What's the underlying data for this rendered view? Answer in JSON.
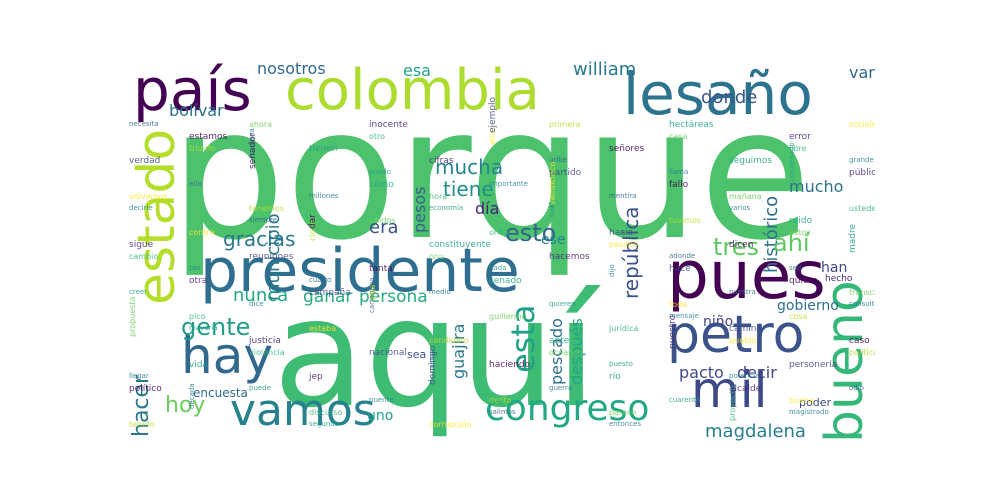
{
  "wordcloud": {
    "words": [
      {
        "text": "porque",
        "color": "#4cc26c"
      },
      {
        "text": "aquí",
        "color": "#3fbc73"
      },
      {
        "text": "presidente",
        "color": "#2e6e8e"
      },
      {
        "text": "colombia",
        "color": "#addc30"
      },
      {
        "text": "país",
        "color": "#440154"
      },
      {
        "text": "lesaño",
        "color": "#2c738e"
      },
      {
        "text": "pues",
        "color": "#440154"
      },
      {
        "text": "petro",
        "color": "#3b528b"
      },
      {
        "text": "bueno",
        "color": "#35b779"
      },
      {
        "text": "estado",
        "color": "#b5de2b"
      },
      {
        "text": "hay",
        "color": "#31688e"
      },
      {
        "text": "mil",
        "color": "#3e4989"
      },
      {
        "text": "vamos",
        "color": "#26828e"
      },
      {
        "text": "congreso",
        "color": "#22a884"
      },
      {
        "text": "gente",
        "color": "#1f9e89"
      },
      {
        "text": "hacer",
        "color": "#2a788e"
      },
      {
        "text": "hoy",
        "color": "#6ccd5a"
      },
      {
        "text": "gustavo",
        "color": "#31688e"
      },
      {
        "text": "tres",
        "color": "#5ec962"
      },
      {
        "text": "ahí",
        "color": "#5ec962"
      },
      {
        "text": "esto",
        "color": "#33638d"
      },
      {
        "text": "esta",
        "color": "#1fa187"
      },
      {
        "text": "república",
        "color": "#3b528b"
      },
      {
        "text": "gracias",
        "color": "#2a788e"
      },
      {
        "text": "mucha",
        "color": "#25858e"
      },
      {
        "text": "tiene",
        "color": "#218f8d"
      },
      {
        "text": "nunca",
        "color": "#22a884"
      },
      {
        "text": "ganar",
        "color": "#25ac82"
      },
      {
        "text": "persona",
        "color": "#25ac82"
      },
      {
        "text": "magdalena",
        "color": "#277f8e"
      },
      {
        "text": "pescado",
        "color": "#2d708e"
      },
      {
        "text": "pacto",
        "color": "#3e4a89"
      },
      {
        "text": "decir",
        "color": "#414487"
      },
      {
        "text": "donde",
        "color": "#39568c"
      },
      {
        "text": "esa",
        "color": "#20a486"
      },
      {
        "text": "william",
        "color": "#2a788e"
      },
      {
        "text": "nosotros",
        "color": "#31688e"
      },
      {
        "text": "mucho",
        "color": "#2c728e"
      },
      {
        "text": "histórico",
        "color": "#2d708e"
      },
      {
        "text": "van",
        "color": "#31688e"
      },
      {
        "text": "municipio",
        "color": "#2a788e"
      },
      {
        "text": "era",
        "color": "#3b528b"
      },
      {
        "text": "día",
        "color": "#482374"
      },
      {
        "text": "pesos",
        "color": "#355f8d"
      },
      {
        "text": "bolívar",
        "color": "#2c728e"
      },
      {
        "text": "ese",
        "color": "#26828e"
      },
      {
        "text": "han",
        "color": "#3e4989"
      },
      {
        "text": "gobierno",
        "color": "#2d708e"
      },
      {
        "text": "después",
        "color": "#20a486"
      },
      {
        "text": "niño",
        "color": "#414487"
      },
      {
        "text": "guajira",
        "color": "#2a788e"
      },
      {
        "text": "uno",
        "color": "#20a486"
      },
      {
        "text": "encuesta",
        "color": "#31688e"
      },
      {
        "text": "poder",
        "color": "#3e4989"
      },
      {
        "text": "sea",
        "color": "#3b528b"
      },
      {
        "text": "hecho",
        "color": "#472d7b"
      }
    ],
    "small_words": [
      "necesita",
      "libre",
      "fallo",
      "cual",
      "onu",
      "campaña",
      "mayoría",
      "política",
      "alcalde",
      "entonces",
      "ellos",
      "cómo",
      "siempre",
      "cambio",
      "quiero",
      "mensaje",
      "océanos",
      "domingo",
      "segundo",
      "triunfo",
      "público",
      "varios",
      "pasado",
      "senado",
      "cartagena",
      "violencia",
      "político",
      "magistrado",
      "casa",
      "partido",
      "economía",
      "cinco",
      "otra",
      "consulta",
      "pueblo",
      "río",
      "salimos",
      "otro",
      "senador",
      "decirle",
      "estoy",
      "hace",
      "quieren",
      "candidato",
      "jep",
      "década",
      "sociales",
      "seguimos",
      "mentira",
      "orilla",
      "tanta",
      "dice",
      "propuesta",
      "personería",
      "cuarenta",
      "primera",
      "cifras",
      "millones",
      "contra",
      "madre",
      "nuestra",
      "jurídica",
      "haciendo",
      "puente",
      "ahora",
      "verdad",
      "condenado",
      "tuvimos",
      "hacemos",
      "medio",
      "estaba",
      "vida",
      "odio",
      "proyecto",
      "señores",
      "importante",
      "unidos",
      "reuniones",
      "creer",
      "cosa",
      "nuestro",
      "guerra",
      "corrupción",
      "tienen",
      "ella",
      "ustedes",
      "dicen",
      "dijo",
      "guillermo",
      "nacional",
      "puede",
      "tenido",
      "error",
      "llama",
      "veinticinco",
      "constituyente",
      "cuatro",
      "pico",
      "caso",
      "potencia",
      "parece",
      "ejemplo",
      "puedo",
      "tenemos",
      "sigue",
      "seis",
      "toda",
      "ante",
      "mismo",
      "discurso",
      "estamos",
      "grande",
      "mañana",
      "hacia",
      "nada",
      "elija",
      "justicia",
      "llegar",
      "buena",
      "hectáreas",
      "uribe",
      "hora",
      "dar",
      "tan",
      "transcripción",
      "camino",
      "puesto",
      "delito",
      "inocente",
      "humana",
      "volvamos",
      "ruido",
      "adonde"
    ]
  }
}
